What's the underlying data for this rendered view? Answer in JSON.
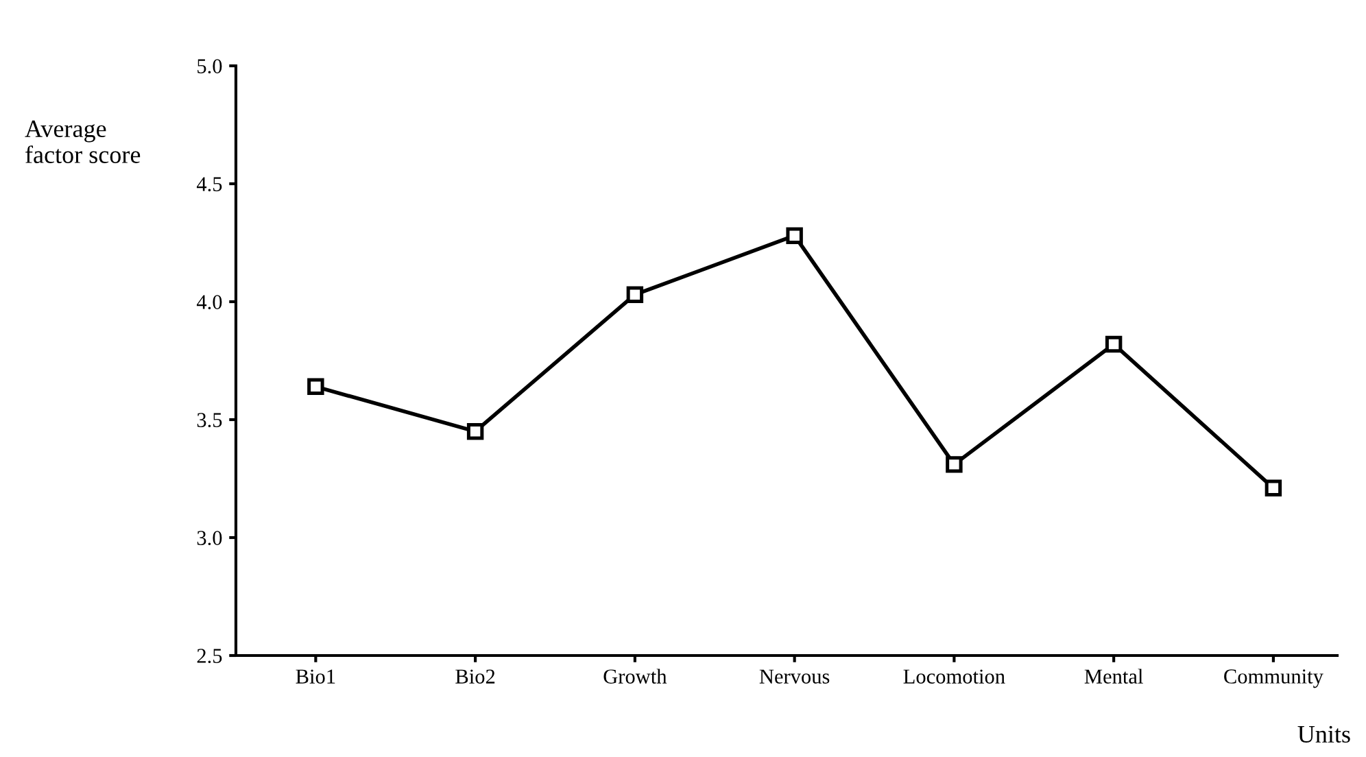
{
  "chart_data": {
    "type": "line",
    "xlabel": "Units",
    "ylabel": "Average\nfactor score",
    "categories": [
      "Bio1",
      "Bio2",
      "Growth",
      "Nervous",
      "Locomotion",
      "Mental",
      "Community"
    ],
    "series": [
      {
        "color": "#000000",
        "values": [
          3.64,
          3.45,
          4.03,
          4.28,
          3.31,
          3.82,
          3.21
        ]
      }
    ],
    "ylim": [
      2.5,
      5.0
    ],
    "yticks": [
      2.5,
      {
        "value": 3,
        "label": "3.0"
      },
      3.5,
      {
        "value": 4,
        "label": "4.0"
      },
      4.5,
      {
        "value": 5,
        "label": "5.0"
      }
    ],
    "marker": "square",
    "line_style": "solid",
    "grid": false,
    "legend": false
  }
}
